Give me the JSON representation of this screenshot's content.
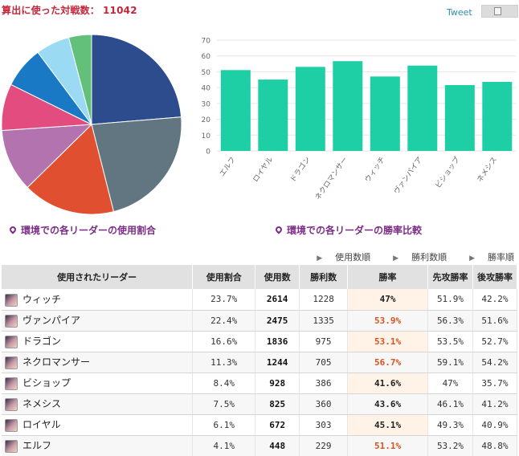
{
  "header": {
    "title_label": "算出に使った対戦数：",
    "match_count": "11042",
    "tweet_label": "Tweet",
    "share_icon": "document-icon"
  },
  "captions": {
    "usage": "環境での各リーダーの使用割合",
    "winrate": "環境での各リーダーの勝率比較"
  },
  "sort_links": [
    "使用数順",
    "勝利数順",
    "勝率順"
  ],
  "table": {
    "headers": [
      "使用されたリーダー",
      "使用割合",
      "使用数",
      "勝利数",
      "勝率",
      "先攻勝率",
      "後攻勝率"
    ],
    "rows": [
      {
        "leader": "ウィッチ",
        "share": "23.7%",
        "uses": "2614",
        "wins": "1228",
        "rate": "47%",
        "first": "51.9%",
        "second": "42.2%",
        "high": false
      },
      {
        "leader": "ヴァンパイア",
        "share": "22.4%",
        "uses": "2475",
        "wins": "1335",
        "rate": "53.9%",
        "first": "56.3%",
        "second": "51.6%",
        "high": true
      },
      {
        "leader": "ドラゴン",
        "share": "16.6%",
        "uses": "1836",
        "wins": "975",
        "rate": "53.1%",
        "first": "53.5%",
        "second": "52.7%",
        "high": true
      },
      {
        "leader": "ネクロマンサー",
        "share": "11.3%",
        "uses": "1244",
        "wins": "705",
        "rate": "56.7%",
        "first": "59.1%",
        "second": "54.2%",
        "high": true
      },
      {
        "leader": "ビショップ",
        "share": "8.4%",
        "uses": "928",
        "wins": "386",
        "rate": "41.6%",
        "first": "47%",
        "second": "35.7%",
        "high": false
      },
      {
        "leader": "ネメシス",
        "share": "7.5%",
        "uses": "825",
        "wins": "360",
        "rate": "43.6%",
        "first": "46.1%",
        "second": "41.2%",
        "high": false
      },
      {
        "leader": "ロイヤル",
        "share": "6.1%",
        "uses": "672",
        "wins": "303",
        "rate": "45.1%",
        "first": "49.3%",
        "second": "40.9%",
        "high": false
      },
      {
        "leader": "エルフ",
        "share": "4.1%",
        "uses": "448",
        "wins": "229",
        "rate": "51.1%",
        "first": "53.2%",
        "second": "48.8%",
        "high": true
      }
    ]
  },
  "colors": {
    "title": "#c4263a",
    "caption": "#7b2d86",
    "bar": "#1ecfa6",
    "rate_high": "#d9531e",
    "pie": [
      "#2d4c8e",
      "#627682",
      "#e04f2f",
      "#b273ae",
      "#e34c7e",
      "#1a79c4",
      "#9adbf3",
      "#63c07a"
    ]
  },
  "chart_data": [
    {
      "type": "pie",
      "title": "環境での各リーダーの使用割合",
      "labels": [
        "ウィッチ",
        "ヴァンパイア",
        "ドラゴン",
        "ネクロマンサー",
        "ビショップ",
        "ネメシス",
        "ロイヤル",
        "エルフ"
      ],
      "values": [
        23.7,
        22.4,
        16.6,
        11.3,
        8.4,
        7.5,
        6.1,
        4.1
      ]
    },
    {
      "type": "bar",
      "title": "環境での各リーダーの勝率比較",
      "categories": [
        "エルフ",
        "ロイヤル",
        "ドラゴン",
        "ネクロマンサー",
        "ウィッチ",
        "ヴァンパイア",
        "ビショップ",
        "ネメシス"
      ],
      "values": [
        51.1,
        45.1,
        53.1,
        56.7,
        47.0,
        53.9,
        41.6,
        43.6
      ],
      "yticks": [
        0,
        10,
        20,
        30,
        40,
        50,
        60,
        70
      ],
      "ylim": [
        0,
        70
      ]
    }
  ]
}
